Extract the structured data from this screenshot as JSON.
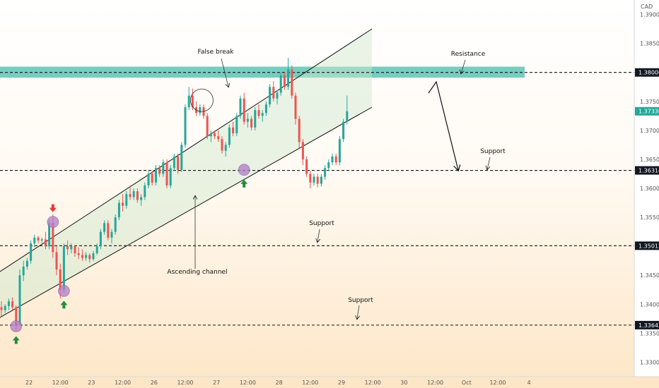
{
  "chart_data": {
    "type": "candlestick",
    "currency": "CAD",
    "ylim": [
      1.3275,
      1.3925
    ],
    "y_ticks": [
      "1.39000",
      "1.38500",
      "1.38000",
      "1.37500",
      "1.37000",
      "1.36500",
      "1.36000",
      "1.35500",
      "1.35000",
      "1.34500",
      "1.34000",
      "1.33500",
      "1.33000"
    ],
    "x_ticks": [
      {
        "i": 7.5,
        "label": "22"
      },
      {
        "i": 16,
        "label": "12:00"
      },
      {
        "i": 24.5,
        "label": "23"
      },
      {
        "i": 33,
        "label": "12:00"
      },
      {
        "i": 41.5,
        "label": "26"
      },
      {
        "i": 50,
        "label": "12:00"
      },
      {
        "i": 58.5,
        "label": "27"
      },
      {
        "i": 67,
        "label": "12:00"
      },
      {
        "i": 75.5,
        "label": "28"
      },
      {
        "i": 84,
        "label": "12:00"
      },
      {
        "i": 92.5,
        "label": "29"
      },
      {
        "i": 101,
        "label": "12:00"
      },
      {
        "i": 109.5,
        "label": "30"
      },
      {
        "i": 118,
        "label": "12:00"
      },
      {
        "i": 126.5,
        "label": "Oct"
      },
      {
        "i": 135,
        "label": "12:00"
      },
      {
        "i": 143.5,
        "label": "4"
      }
    ],
    "price_labels": [
      {
        "value": 1.38,
        "label": "1.38000",
        "style": "dark"
      },
      {
        "value": 1.3631,
        "label": "1.36314",
        "style": "dark"
      },
      {
        "value": 1.3501,
        "label": "1.35013",
        "style": "dark"
      },
      {
        "value": 1.3364,
        "label": "1.33643",
        "style": "dark"
      },
      {
        "value": 1.3733,
        "label": "1.37330",
        "style": "green"
      }
    ],
    "dashed_levels": [
      1.38,
      1.3631,
      1.3501,
      1.3364
    ],
    "resistance_zone": {
      "from": 1.3791,
      "to": 1.381,
      "color": "#5fc4b4"
    },
    "candles": [
      [
        1.3395,
        1.3405,
        1.338,
        1.339
      ],
      [
        1.339,
        1.34,
        1.3385,
        1.3397
      ],
      [
        1.3397,
        1.341,
        1.339,
        1.3405
      ],
      [
        1.3405,
        1.3412,
        1.339,
        1.3395
      ],
      [
        1.3395,
        1.3398,
        1.3355,
        1.3365
      ],
      [
        1.3365,
        1.346,
        1.3362,
        1.345
      ],
      [
        1.345,
        1.3475,
        1.344,
        1.3465
      ],
      [
        1.3465,
        1.348,
        1.346,
        1.3475
      ],
      [
        1.3475,
        1.351,
        1.347,
        1.3505
      ],
      [
        1.3505,
        1.352,
        1.3498,
        1.3515
      ],
      [
        1.3515,
        1.3518,
        1.3505,
        1.351
      ],
      [
        1.351,
        1.3515,
        1.3505,
        1.3512
      ],
      [
        1.3512,
        1.3525,
        1.3495,
        1.35
      ],
      [
        1.35,
        1.3545,
        1.3495,
        1.354
      ],
      [
        1.354,
        1.3555,
        1.348,
        1.349
      ],
      [
        1.349,
        1.35,
        1.345,
        1.346
      ],
      [
        1.346,
        1.347,
        1.341,
        1.3425
      ],
      [
        1.3425,
        1.3505,
        1.342,
        1.35
      ],
      [
        1.35,
        1.351,
        1.3485,
        1.3495
      ],
      [
        1.3495,
        1.3505,
        1.3488,
        1.35
      ],
      [
        1.35,
        1.3502,
        1.3482,
        1.3488
      ],
      [
        1.3488,
        1.3498,
        1.3478,
        1.3485
      ],
      [
        1.3485,
        1.3495,
        1.3475,
        1.348
      ],
      [
        1.348,
        1.349,
        1.3475,
        1.3485
      ],
      [
        1.3485,
        1.3488,
        1.3472,
        1.3478
      ],
      [
        1.3478,
        1.3492,
        1.3475,
        1.3488
      ],
      [
        1.3488,
        1.3505,
        1.3485,
        1.35
      ],
      [
        1.35,
        1.353,
        1.3495,
        1.3525
      ],
      [
        1.3525,
        1.3545,
        1.352,
        1.354
      ],
      [
        1.354,
        1.3545,
        1.351,
        1.3515
      ],
      [
        1.3515,
        1.353,
        1.3505,
        1.3525
      ],
      [
        1.3525,
        1.3555,
        1.352,
        1.355
      ],
      [
        1.355,
        1.358,
        1.3545,
        1.3575
      ],
      [
        1.3575,
        1.359,
        1.356,
        1.357
      ],
      [
        1.357,
        1.3595,
        1.3565,
        1.359
      ],
      [
        1.359,
        1.3605,
        1.358,
        1.3585
      ],
      [
        1.3585,
        1.36,
        1.358,
        1.3595
      ],
      [
        1.3595,
        1.36,
        1.3575,
        1.358
      ],
      [
        1.358,
        1.359,
        1.357,
        1.3585
      ],
      [
        1.3585,
        1.361,
        1.358,
        1.3605
      ],
      [
        1.3605,
        1.363,
        1.36,
        1.3625
      ],
      [
        1.3625,
        1.363,
        1.3605,
        1.361
      ],
      [
        1.361,
        1.364,
        1.3605,
        1.3635
      ],
      [
        1.3635,
        1.364,
        1.362,
        1.3625
      ],
      [
        1.3625,
        1.365,
        1.362,
        1.3645
      ],
      [
        1.3645,
        1.365,
        1.36,
        1.3605
      ],
      [
        1.3605,
        1.364,
        1.36,
        1.3635
      ],
      [
        1.3635,
        1.366,
        1.363,
        1.3655
      ],
      [
        1.3655,
        1.366,
        1.3625,
        1.3632
      ],
      [
        1.3632,
        1.368,
        1.3628,
        1.3675
      ],
      [
        1.3675,
        1.3745,
        1.367,
        1.374
      ],
      [
        1.374,
        1.3775,
        1.3735,
        1.376
      ],
      [
        1.376,
        1.3772,
        1.3735,
        1.374
      ],
      [
        1.374,
        1.375,
        1.3725,
        1.373
      ],
      [
        1.373,
        1.3745,
        1.3725,
        1.374
      ],
      [
        1.374,
        1.3745,
        1.372,
        1.3725
      ],
      [
        1.3725,
        1.373,
        1.3685,
        1.369
      ],
      [
        1.369,
        1.37,
        1.368,
        1.3695
      ],
      [
        1.3695,
        1.37,
        1.3685,
        1.369
      ],
      [
        1.369,
        1.37,
        1.368,
        1.3685
      ],
      [
        1.3685,
        1.369,
        1.366,
        1.3665
      ],
      [
        1.3665,
        1.368,
        1.3655,
        1.3675
      ],
      [
        1.3675,
        1.371,
        1.367,
        1.3705
      ],
      [
        1.3705,
        1.3715,
        1.369,
        1.3695
      ],
      [
        1.3695,
        1.373,
        1.369,
        1.3725
      ],
      [
        1.3725,
        1.376,
        1.372,
        1.3755
      ],
      [
        1.3755,
        1.3765,
        1.371,
        1.3715
      ],
      [
        1.3715,
        1.373,
        1.3705,
        1.372
      ],
      [
        1.372,
        1.3725,
        1.37,
        1.3705
      ],
      [
        1.3705,
        1.374,
        1.37,
        1.3735
      ],
      [
        1.3735,
        1.3745,
        1.372,
        1.3725
      ],
      [
        1.3725,
        1.3735,
        1.3715,
        1.373
      ],
      [
        1.373,
        1.375,
        1.3725,
        1.3745
      ],
      [
        1.3745,
        1.378,
        1.374,
        1.3775
      ],
      [
        1.3775,
        1.3785,
        1.375,
        1.3755
      ],
      [
        1.3755,
        1.377,
        1.3745,
        1.3765
      ],
      [
        1.3765,
        1.38,
        1.376,
        1.3795
      ],
      [
        1.3795,
        1.38,
        1.377,
        1.3775
      ],
      [
        1.3775,
        1.3825,
        1.377,
        1.3805
      ],
      [
        1.3805,
        1.3812,
        1.3755,
        1.376
      ],
      [
        1.376,
        1.3765,
        1.371,
        1.372
      ],
      [
        1.372,
        1.3725,
        1.367,
        1.368
      ],
      [
        1.368,
        1.3685,
        1.364,
        1.365
      ],
      [
        1.365,
        1.3655,
        1.362,
        1.3625
      ],
      [
        1.3625,
        1.363,
        1.36,
        1.361
      ],
      [
        1.361,
        1.3625,
        1.3605,
        1.362
      ],
      [
        1.362,
        1.3625,
        1.3602,
        1.3608
      ],
      [
        1.3608,
        1.3625,
        1.3603,
        1.362
      ],
      [
        1.362,
        1.364,
        1.3615,
        1.3635
      ],
      [
        1.3635,
        1.365,
        1.363,
        1.3645
      ],
      [
        1.3645,
        1.366,
        1.364,
        1.3655
      ],
      [
        1.3655,
        1.366,
        1.364,
        1.3645
      ],
      [
        1.3645,
        1.369,
        1.364,
        1.3685
      ],
      [
        1.3685,
        1.372,
        1.368,
        1.3715
      ],
      [
        1.3715,
        1.376,
        1.371,
        1.3733
      ]
    ],
    "annotations": [
      {
        "text": "False break",
        "x": 305,
        "y": 76
      },
      {
        "text": "Resistance",
        "x": 662,
        "y": 79
      },
      {
        "text": "Support",
        "x": 697,
        "y": 217
      },
      {
        "text": "Support",
        "x": 455,
        "y": 319
      },
      {
        "text": "Support",
        "x": 510,
        "y": 428
      },
      {
        "text": "Ascending channel",
        "x": 279,
        "y": 388
      }
    ],
    "markers": {
      "circles": [
        {
          "i": 4,
          "price": 1.3362
        },
        {
          "i": 14,
          "price": 1.3542
        },
        {
          "i": 17,
          "price": 1.3423
        },
        {
          "i": 66,
          "price": 1.3632
        }
      ],
      "green_up_arrows": [
        4,
        17,
        66
      ],
      "red_down_arrow": 14,
      "false_break_circle": {
        "i": 54.5,
        "price": 1.3752
      }
    }
  }
}
